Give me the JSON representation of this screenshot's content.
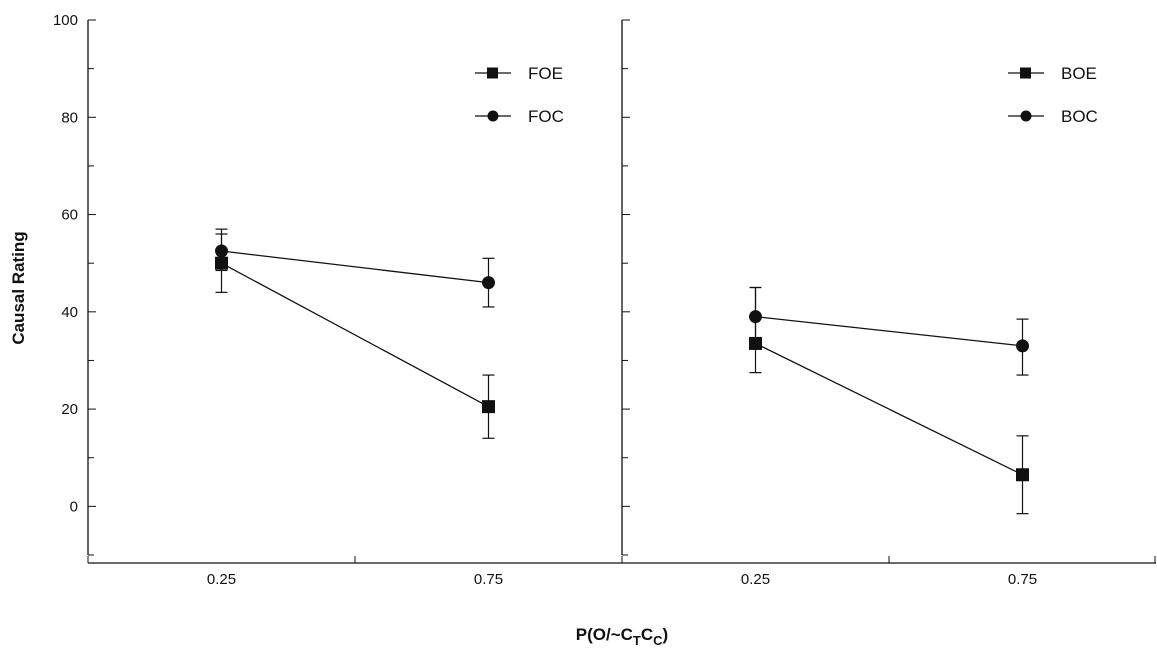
{
  "chart_data": {
    "type": "line",
    "ylabel": "Causal Rating",
    "xlabel": {
      "main": "P(O/~C",
      "sub1": "T",
      "mid": "C",
      "sub2": "C",
      "close": ")"
    },
    "ylim": [
      -10,
      100
    ],
    "yticks": [
      0,
      20,
      40,
      60,
      80,
      100
    ],
    "categories": [
      "0.25",
      "0.75"
    ],
    "grid": false,
    "panels": [
      {
        "legend_position": "top-right",
        "series": [
          {
            "name": "FOE",
            "marker": "square",
            "values": [
              50,
              20.5
            ],
            "err_low": [
              44,
              14
            ],
            "err_high": [
              56,
              27
            ]
          },
          {
            "name": "FOC",
            "marker": "circle",
            "values": [
              52.5,
              46
            ],
            "err_low": [
              48.5,
              41
            ],
            "err_high": [
              57,
              51
            ]
          }
        ]
      },
      {
        "legend_position": "top-right",
        "series": [
          {
            "name": "BOE",
            "marker": "square",
            "values": [
              33.5,
              6.5
            ],
            "err_low": [
              27.5,
              -1.5
            ],
            "err_high": [
              45,
              14.5
            ]
          },
          {
            "name": "BOC",
            "marker": "circle",
            "values": [
              39,
              33
            ],
            "err_low": [
              33,
              27
            ],
            "err_high": [
              45,
              38.5
            ]
          }
        ]
      }
    ]
  }
}
